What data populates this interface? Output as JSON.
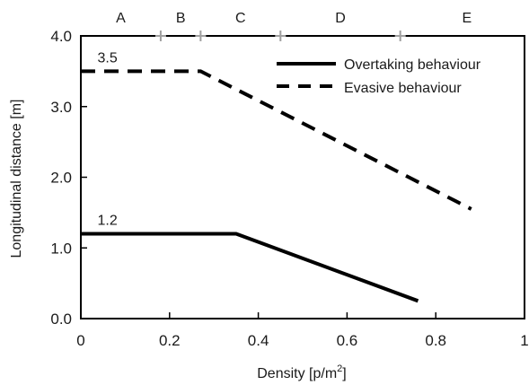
{
  "chart_data": {
    "type": "line",
    "xlabel": "Density [p/m",
    "xlabel_sup": "2",
    "xlabel_end": "]",
    "ylabel": "Longitudinal distance [m]",
    "xlim": [
      0,
      1
    ],
    "ylim": [
      0,
      4
    ],
    "x_ticks": [
      0,
      0.2,
      0.4,
      0.6,
      0.8,
      1
    ],
    "x_tick_labels": [
      "0",
      "0.2",
      "0.4",
      "0.6",
      "0.8",
      "1"
    ],
    "y_ticks": [
      0,
      1,
      2,
      3,
      4
    ],
    "y_tick_labels": [
      "0.0",
      "1.0",
      "2.0",
      "3.0",
      "4.0"
    ],
    "grid": false,
    "legend_position": "top-right",
    "series": [
      {
        "name": "Overtaking behaviour",
        "style": "solid",
        "color": "#000000",
        "x": [
          0,
          0.35,
          0.76
        ],
        "y": [
          1.2,
          1.2,
          0.25
        ]
      },
      {
        "name": "Evasive behaviour",
        "style": "dashed",
        "color": "#000000",
        "x": [
          0,
          0.27,
          0.88
        ],
        "y": [
          3.5,
          3.5,
          1.55
        ]
      }
    ],
    "annotations": [
      {
        "text": "3.5",
        "x": 0.06,
        "y": 3.5
      },
      {
        "text": "1.2",
        "x": 0.06,
        "y": 1.2
      }
    ],
    "zone_boundaries": [
      0.18,
      0.27,
      0.45,
      0.72
    ],
    "zone_labels": [
      {
        "text": "A",
        "x": 0.09
      },
      {
        "text": "B",
        "x": 0.225
      },
      {
        "text": "C",
        "x": 0.36
      },
      {
        "text": "D",
        "x": 0.585
      },
      {
        "text": "E",
        "x": 0.87
      }
    ],
    "zone_marker_color": "#a0a0a0"
  }
}
